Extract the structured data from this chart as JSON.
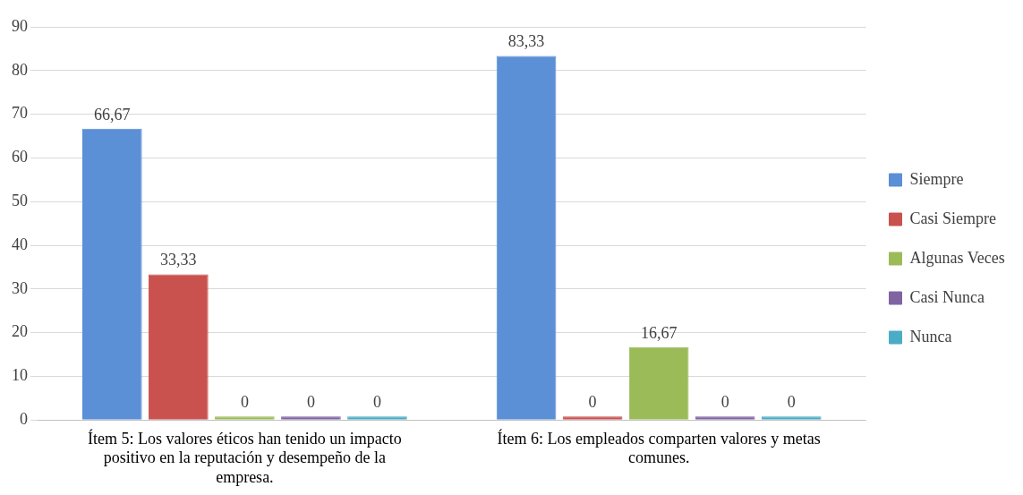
{
  "chart_data": {
    "type": "bar",
    "categories": [
      "Ítem 5: Los valores éticos han tenido un impacto positivo en la reputación y desempeño de la empresa.",
      "Ítem 6: Los empleados comparten valores y metas comunes."
    ],
    "series": [
      {
        "name": "Siempre",
        "color": "#5b8fd6",
        "values": [
          66.67,
          83.33
        ],
        "value_labels": [
          "66,67",
          "83,33"
        ]
      },
      {
        "name": "Casi Siempre",
        "color": "#c9524f",
        "values": [
          33.33,
          0
        ],
        "value_labels": [
          "33,33",
          "0"
        ]
      },
      {
        "name": "Algunas Veces",
        "color": "#9bbb59",
        "values": [
          0,
          16.67
        ],
        "value_labels": [
          "0",
          "16,67"
        ]
      },
      {
        "name": "Casi Nunca",
        "color": "#8064a2",
        "values": [
          0,
          0
        ],
        "value_labels": [
          "0",
          "0"
        ]
      },
      {
        "name": "Nunca",
        "color": "#4bacc6",
        "values": [
          0,
          0
        ],
        "value_labels": [
          "0",
          "0"
        ]
      }
    ],
    "ylim": [
      0,
      90
    ],
    "yticks": [
      0,
      10,
      20,
      30,
      40,
      50,
      60,
      70,
      80,
      90
    ],
    "grid": "y",
    "legend": "right"
  }
}
